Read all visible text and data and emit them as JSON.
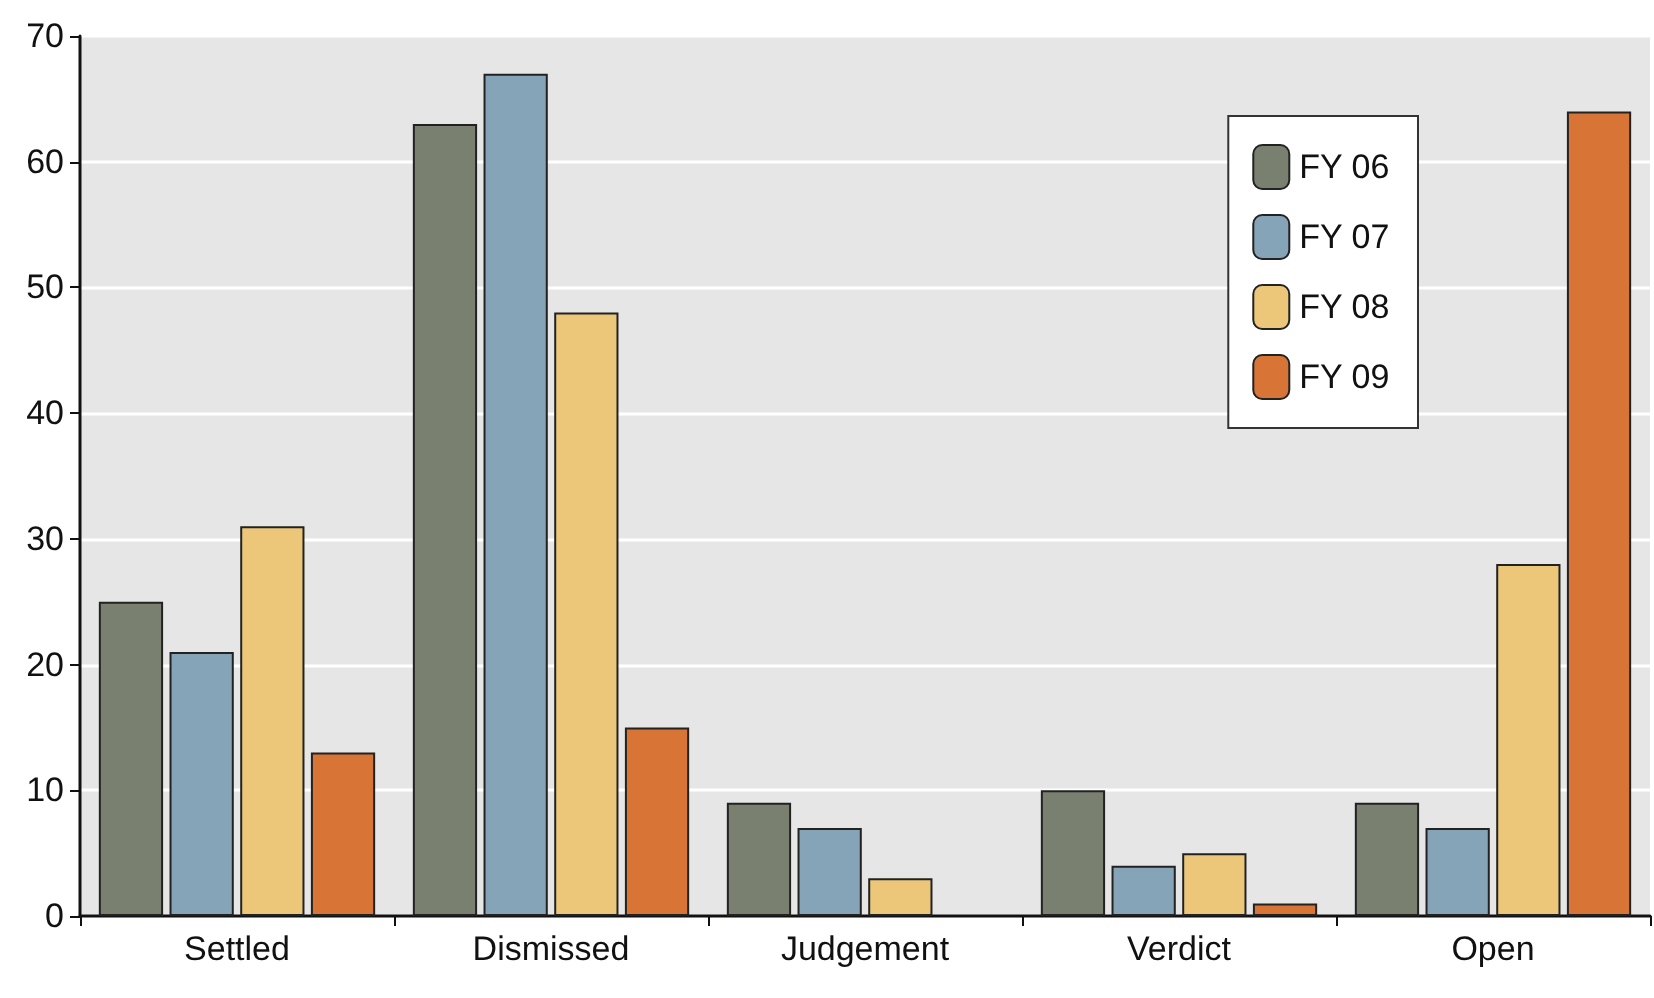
{
  "chart_data": {
    "type": "bar",
    "categories": [
      "Settled",
      "Dismissed",
      "Judgement",
      "Verdict",
      "Open"
    ],
    "series": [
      {
        "name": "FY 06",
        "color": "#7a8070",
        "values": [
          25,
          63,
          9,
          10,
          9
        ]
      },
      {
        "name": "FY 07",
        "color": "#86a4b8",
        "values": [
          21,
          67,
          7,
          4,
          7
        ]
      },
      {
        "name": "FY 08",
        "color": "#ecc77a",
        "values": [
          31,
          48,
          3,
          5,
          28
        ]
      },
      {
        "name": "FY 09",
        "color": "#d87436",
        "values": [
          13,
          15,
          null,
          1,
          64
        ]
      }
    ],
    "ylim": [
      0,
      70
    ],
    "yticks": [
      0,
      10,
      20,
      30,
      40,
      50,
      60,
      70
    ],
    "grid": "y",
    "legend": "top right"
  }
}
